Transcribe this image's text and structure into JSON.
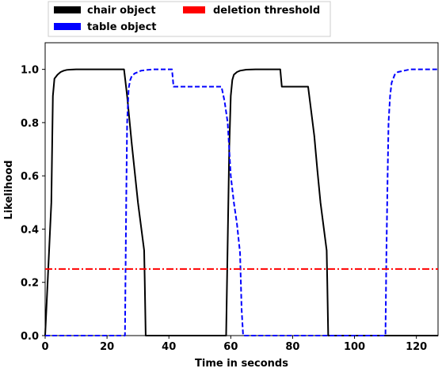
{
  "chart_data": {
    "type": "line",
    "title": "",
    "xlabel": "Time in seconds",
    "ylabel": "Likelihood",
    "xlim": [
      0,
      127
    ],
    "ylim": [
      0,
      1.1
    ],
    "xticks": [
      0,
      20,
      40,
      60,
      80,
      100,
      120
    ],
    "yticks": [
      0.0,
      0.2,
      0.4,
      0.6,
      0.8,
      1.0
    ],
    "xtick_labels": [
      "0",
      "20",
      "40",
      "60",
      "80",
      "100",
      "120"
    ],
    "ytick_labels": [
      "0.0",
      "0.2",
      "0.4",
      "0.6",
      "0.8",
      "1.0"
    ],
    "grid": false,
    "legend": {
      "placement": "top, outside plot area",
      "entries": [
        {
          "name": "chair object",
          "color": "#000000"
        },
        {
          "name": "table object",
          "color": "#0000ff"
        },
        {
          "name": "deletion threshold",
          "color": "#ff0000"
        }
      ]
    },
    "series": [
      {
        "name": "chair object",
        "color": "#000000",
        "style": "solid",
        "x": [
          0,
          1,
          2,
          2.5,
          3,
          4,
          5,
          6,
          7,
          8,
          10,
          15,
          20,
          25.5,
          26.5,
          28,
          30,
          32,
          32.2,
          32.5,
          58.5,
          59,
          59.5,
          60,
          60.5,
          61,
          62,
          63,
          65,
          68,
          76,
          76.5,
          85,
          87,
          88,
          89,
          91,
          91.2,
          91.5,
          127
        ],
        "y": [
          0.0,
          0.25,
          0.5,
          0.9,
          0.965,
          0.98,
          0.99,
          0.995,
          0.998,
          0.999,
          1.0,
          1.0,
          1.0,
          1.0,
          0.9,
          0.72,
          0.5,
          0.32,
          0.2,
          0.0,
          0.0,
          0.35,
          0.7,
          0.9,
          0.96,
          0.98,
          0.99,
          0.995,
          0.999,
          1.0,
          1.0,
          0.935,
          0.935,
          0.75,
          0.62,
          0.5,
          0.32,
          0.2,
          0.0,
          0.0
        ]
      },
      {
        "name": "table object",
        "color": "#0000ff",
        "style": "dashed",
        "x": [
          0,
          25.8,
          26.2,
          26.5,
          27,
          27.5,
          28,
          29,
          30,
          31,
          33,
          35,
          41,
          41.5,
          57,
          58,
          59,
          59.5,
          60,
          61,
          62,
          63,
          63.5,
          64,
          110,
          110.3,
          110.7,
          111,
          111.5,
          112,
          113,
          114,
          116,
          118,
          127
        ],
        "y": [
          0.0,
          0.0,
          0.5,
          0.8,
          0.93,
          0.96,
          0.975,
          0.985,
          0.99,
          0.995,
          0.998,
          1.0,
          1.0,
          0.935,
          0.935,
          0.88,
          0.8,
          0.7,
          0.6,
          0.5,
          0.42,
          0.31,
          0.1,
          0.0,
          0.0,
          0.3,
          0.6,
          0.8,
          0.9,
          0.95,
          0.98,
          0.99,
          0.995,
          1.0,
          1.0
        ]
      },
      {
        "name": "deletion threshold",
        "color": "#ff0000",
        "style": "dashdot",
        "x": [
          0,
          127
        ],
        "y": [
          0.25,
          0.25
        ]
      }
    ]
  }
}
